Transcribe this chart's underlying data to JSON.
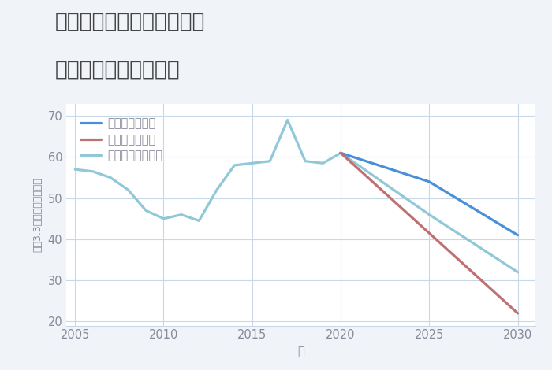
{
  "title_line1": "岐阜県不破郡垂井町大石の",
  "title_line2": "中古戸建ての価格推移",
  "xlabel": "年",
  "ylabel_chars": [
    "平",
    "（",
    "3",
    ".",
    "3",
    "㎡",
    "）",
    "単",
    "価",
    "（",
    "万",
    "円",
    "）"
  ],
  "ylim": [
    19,
    73
  ],
  "xlim": [
    2004.5,
    2031
  ],
  "yticks": [
    20,
    30,
    40,
    50,
    60,
    70
  ],
  "xticks": [
    2005,
    2010,
    2015,
    2020,
    2025,
    2030
  ],
  "background_color": "#f0f4f8",
  "plot_bg_color": "#ffffff",
  "grid_color": "#c8d8e8",
  "good_scenario": {
    "label": "グッドシナリオ",
    "color": "#4a90d9",
    "x": [
      2020,
      2025,
      2030
    ],
    "y": [
      61,
      54,
      41
    ]
  },
  "bad_scenario": {
    "label": "バッドシナリオ",
    "color": "#c07070",
    "x": [
      2020,
      2030
    ],
    "y": [
      61,
      22
    ]
  },
  "normal_scenario": {
    "label": "ノーマルシナリオ",
    "color": "#90c8d8",
    "x": [
      2005,
      2006,
      2007,
      2008,
      2009,
      2010,
      2011,
      2012,
      2013,
      2014,
      2015,
      2016,
      2017,
      2018,
      2019,
      2020,
      2025,
      2030
    ],
    "y": [
      57,
      56.5,
      55,
      52,
      47,
      45,
      46,
      44.5,
      52,
      58,
      58.5,
      59,
      69,
      59,
      58.5,
      61,
      46,
      32
    ]
  },
  "title_color": "#444444",
  "axis_color": "#888899",
  "tick_color": "#888899",
  "title_fontsize": 19,
  "legend_fontsize": 10.5,
  "axis_fontsize": 10.5,
  "line_width": 2.3
}
